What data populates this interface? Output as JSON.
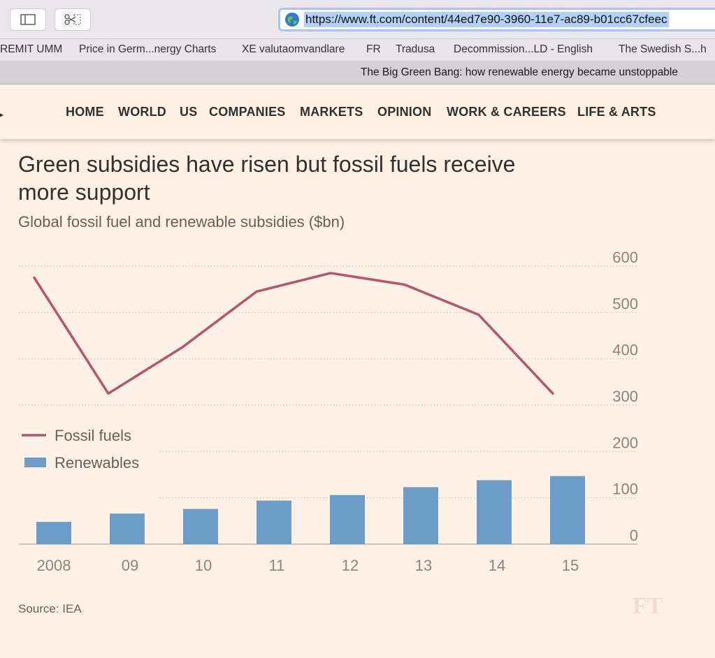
{
  "browser": {
    "url": "https://www.ft.com/content/44ed7e90-3960-11e7-ac89-b01cc67cfeec",
    "bookmarks": [
      "REMIT UMM",
      "Price in Germ...nergy Charts",
      "XE valutaomvandlare",
      "FR",
      "Tradusa",
      "Decommission...LD - English",
      "The Swedish S...h"
    ],
    "tab_title": "The Big Green Bang: how renewable energy became unstoppable"
  },
  "nav": {
    "items": [
      "HOME",
      "WORLD",
      "US",
      "COMPANIES",
      "MARKETS",
      "OPINION",
      "WORK & CAREERS",
      "LIFE & ARTS"
    ]
  },
  "article": {
    "title": "Green subsidies have risen but fossil fuels receive more support",
    "subtitle": "Global fossil fuel and renewable subsidies ($bn)",
    "source": "Source: IEA",
    "logo": "FT"
  },
  "chart_data": {
    "type": "bar",
    "title": "Green subsidies have risen but fossil fuels receive more support",
    "subtitle": "Global fossil fuel and renewable subsidies ($bn)",
    "categories": [
      "2008",
      "09",
      "10",
      "11",
      "12",
      "13",
      "14",
      "15"
    ],
    "series": [
      {
        "name": "Fossil fuels",
        "type": "line",
        "color": "#b5566e",
        "values": [
          575,
          325,
          425,
          545,
          585,
          560,
          495,
          325
        ]
      },
      {
        "name": "Renewables",
        "type": "bar",
        "color": "#6b9dc8",
        "values": [
          48,
          66,
          76,
          94,
          106,
          123,
          138,
          147
        ]
      }
    ],
    "y_ticks": [
      "600",
      "500",
      "400",
      "300",
      "200",
      "100",
      "0"
    ],
    "ylim": [
      0,
      600
    ],
    "y_axis_side": "right",
    "grid": "dotted horizontal",
    "legend_position": "left",
    "xlabel": "",
    "ylabel": ""
  },
  "colors": {
    "background": "#fff1e5",
    "fossil": "#b5566e",
    "renewables": "#6b9dc8"
  }
}
